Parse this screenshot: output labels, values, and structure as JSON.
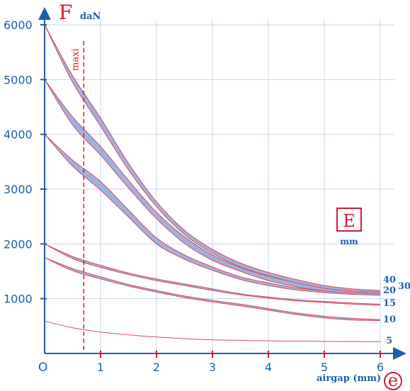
{
  "chart_data": {
    "type": "line",
    "y_axis": {
      "symbol": "F",
      "unit": "daN",
      "ylim": [
        0,
        6000
      ],
      "ticks": [
        1000,
        2000,
        3000,
        4000,
        5000,
        6000
      ]
    },
    "x_axis": {
      "symbol": "e",
      "label": "airgap (mm)",
      "xlim": [
        0,
        6
      ],
      "ticks": [
        1,
        2,
        3,
        4,
        5,
        6
      ]
    },
    "origin_label": "O",
    "grid": true,
    "grid_x": [
      1,
      2,
      3,
      4,
      5,
      6
    ],
    "grid_y": [
      1000,
      2000,
      3000,
      4000,
      5000,
      6000
    ],
    "legend_title": "E",
    "legend_unit": "mm",
    "marker": {
      "label": "maxi",
      "x": 0.7
    },
    "x": [
      0,
      0.5,
      1,
      1.5,
      2,
      2.5,
      3,
      3.5,
      4,
      4.5,
      5,
      5.5,
      6
    ],
    "series": [
      {
        "name": "40",
        "band": true,
        "upper": [
          6000,
          5070,
          4300,
          3470,
          2770,
          2250,
          1900,
          1650,
          1480,
          1350,
          1240,
          1180,
          1150
        ],
        "lower": [
          6000,
          4950,
          4150,
          3350,
          2680,
          2170,
          1830,
          1580,
          1420,
          1290,
          1190,
          1130,
          1110
        ]
      },
      {
        "name": "30",
        "band": true,
        "upper": [
          5000,
          4320,
          3780,
          3160,
          2580,
          2130,
          1800,
          1570,
          1410,
          1290,
          1190,
          1140,
          1120
        ],
        "lower": [
          5000,
          4170,
          3620,
          3020,
          2460,
          2010,
          1700,
          1500,
          1330,
          1220,
          1140,
          1100,
          1080
        ]
      },
      {
        "name": "20",
        "band": true,
        "upper": [
          4000,
          3530,
          3140,
          2620,
          2110,
          1800,
          1580,
          1400,
          1290,
          1200,
          1140,
          1110,
          1090
        ],
        "lower": [
          4000,
          3420,
          2980,
          2490,
          2000,
          1720,
          1520,
          1350,
          1240,
          1160,
          1110,
          1080,
          1060
        ]
      },
      {
        "name": "15",
        "band": true,
        "upper": [
          2000,
          1770,
          1610,
          1470,
          1360,
          1270,
          1180,
          1090,
          1030,
          980,
          950,
          920,
          900
        ],
        "lower": [
          2000,
          1730,
          1570,
          1440,
          1330,
          1240,
          1150,
          1070,
          1010,
          960,
          930,
          900,
          880
        ]
      },
      {
        "name": "10",
        "band": true,
        "upper": [
          1750,
          1550,
          1400,
          1260,
          1150,
          1050,
          970,
          900,
          820,
          740,
          680,
          640,
          620
        ],
        "lower": [
          1750,
          1510,
          1360,
          1230,
          1120,
          1020,
          940,
          870,
          790,
          710,
          650,
          610,
          600
        ]
      },
      {
        "name": "5",
        "band": false,
        "upper": [
          590,
          470,
          390,
          340,
          300,
          270,
          250,
          240,
          230,
          225,
          220,
          218,
          215
        ],
        "lower": [
          590,
          470,
          390,
          340,
          300,
          270,
          250,
          240,
          230,
          225,
          220,
          218,
          215
        ]
      }
    ]
  }
}
